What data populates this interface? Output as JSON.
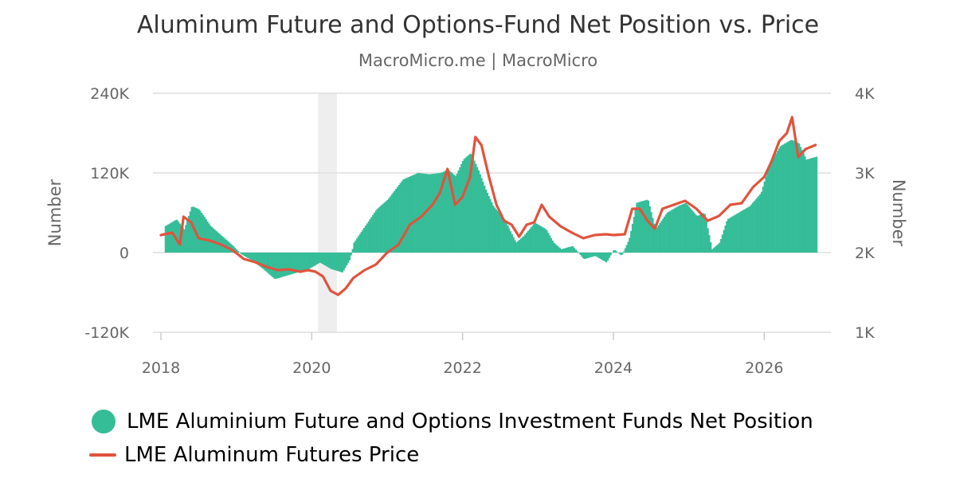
{
  "header": {
    "title": "Aluminum Future and Options-Fund Net Position vs. Price",
    "subtitle": "MacroMicro.me | MacroMicro"
  },
  "colors": {
    "position": "#35bd98",
    "price": "#e0533d",
    "recession": "#eeeeee",
    "grid": "#dddddd",
    "axis_text": "#666666"
  },
  "chart_data": {
    "type": "bar+line",
    "title": "Aluminum Future and Options-Fund Net Position vs. Price",
    "subtitle": "MacroMicro.me | MacroMicro",
    "x_ticks": [
      "2018",
      "2020",
      "2022",
      "2024",
      "2026"
    ],
    "y_left": {
      "label": "Number",
      "min": -120000,
      "max": 240000,
      "ticks": [
        "-120K",
        "0",
        "120K",
        "240K"
      ]
    },
    "y_right": {
      "label": "Number",
      "min": 1000,
      "max": 4000,
      "ticks": [
        "1K",
        "2K",
        "3K",
        "4K"
      ]
    },
    "shaded_period": [
      "2020-02",
      "2020-05"
    ],
    "series": [
      {
        "name": "LME Aluminium Future and Options Investment Funds Net Position",
        "kind": "bar",
        "axis": "left",
        "points": [
          [
            2018.05,
            40000
          ],
          [
            2018.2,
            50000
          ],
          [
            2018.3,
            35000
          ],
          [
            2018.4,
            70000
          ],
          [
            2018.5,
            65000
          ],
          [
            2018.65,
            40000
          ],
          [
            2018.8,
            25000
          ],
          [
            2018.95,
            10000
          ],
          [
            2019.05,
            -2000
          ],
          [
            2019.2,
            -12000
          ],
          [
            2019.35,
            -25000
          ],
          [
            2019.5,
            -40000
          ],
          [
            2019.65,
            -35000
          ],
          [
            2019.8,
            -30000
          ],
          [
            2019.95,
            -25000
          ],
          [
            2020.1,
            -15000
          ],
          [
            2020.25,
            -25000
          ],
          [
            2020.4,
            -30000
          ],
          [
            2020.5,
            -10000
          ],
          [
            2020.55,
            15000
          ],
          [
            2020.7,
            40000
          ],
          [
            2020.85,
            65000
          ],
          [
            2021.0,
            80000
          ],
          [
            2021.2,
            110000
          ],
          [
            2021.4,
            120000
          ],
          [
            2021.55,
            118000
          ],
          [
            2021.7,
            120000
          ],
          [
            2021.8,
            125000
          ],
          [
            2021.9,
            115000
          ],
          [
            2022.0,
            140000
          ],
          [
            2022.1,
            150000
          ],
          [
            2022.2,
            125000
          ],
          [
            2022.3,
            95000
          ],
          [
            2022.4,
            70000
          ],
          [
            2022.55,
            50000
          ],
          [
            2022.7,
            15000
          ],
          [
            2022.8,
            25000
          ],
          [
            2022.95,
            45000
          ],
          [
            2023.1,
            35000
          ],
          [
            2023.2,
            15000
          ],
          [
            2023.3,
            5000
          ],
          [
            2023.45,
            10000
          ],
          [
            2023.6,
            -10000
          ],
          [
            2023.75,
            -5000
          ],
          [
            2023.9,
            -15000
          ],
          [
            2024.0,
            5000
          ],
          [
            2024.1,
            -5000
          ],
          [
            2024.2,
            20000
          ],
          [
            2024.3,
            75000
          ],
          [
            2024.45,
            80000
          ],
          [
            2024.55,
            35000
          ],
          [
            2024.7,
            60000
          ],
          [
            2024.85,
            70000
          ],
          [
            2024.95,
            75000
          ],
          [
            2025.1,
            55000
          ],
          [
            2025.2,
            60000
          ],
          [
            2025.3,
            5000
          ],
          [
            2025.4,
            15000
          ],
          [
            2025.5,
            50000
          ],
          [
            2025.65,
            60000
          ],
          [
            2025.8,
            70000
          ],
          [
            2025.95,
            90000
          ],
          [
            2026.05,
            130000
          ],
          [
            2026.2,
            160000
          ],
          [
            2026.35,
            170000
          ],
          [
            2026.45,
            165000
          ],
          [
            2026.55,
            140000
          ],
          [
            2026.7,
            145000
          ]
        ]
      },
      {
        "name": "LME Aluminum Futures Price",
        "kind": "line",
        "axis": "right",
        "points": [
          [
            2018.0,
            2220
          ],
          [
            2018.15,
            2250
          ],
          [
            2018.25,
            2100
          ],
          [
            2018.3,
            2450
          ],
          [
            2018.4,
            2380
          ],
          [
            2018.5,
            2180
          ],
          [
            2018.65,
            2150
          ],
          [
            2018.8,
            2100
          ],
          [
            2018.95,
            2030
          ],
          [
            2019.1,
            1920
          ],
          [
            2019.25,
            1880
          ],
          [
            2019.4,
            1820
          ],
          [
            2019.55,
            1780
          ],
          [
            2019.7,
            1790
          ],
          [
            2019.85,
            1760
          ],
          [
            2019.95,
            1780
          ],
          [
            2020.05,
            1760
          ],
          [
            2020.15,
            1700
          ],
          [
            2020.25,
            1520
          ],
          [
            2020.35,
            1470
          ],
          [
            2020.45,
            1550
          ],
          [
            2020.55,
            1680
          ],
          [
            2020.7,
            1780
          ],
          [
            2020.85,
            1850
          ],
          [
            2021.0,
            2000
          ],
          [
            2021.15,
            2100
          ],
          [
            2021.3,
            2350
          ],
          [
            2021.45,
            2450
          ],
          [
            2021.6,
            2600
          ],
          [
            2021.7,
            2750
          ],
          [
            2021.8,
            3050
          ],
          [
            2021.9,
            2600
          ],
          [
            2022.0,
            2700
          ],
          [
            2022.1,
            2950
          ],
          [
            2022.17,
            3450
          ],
          [
            2022.25,
            3350
          ],
          [
            2022.35,
            2950
          ],
          [
            2022.45,
            2600
          ],
          [
            2022.55,
            2400
          ],
          [
            2022.65,
            2350
          ],
          [
            2022.75,
            2200
          ],
          [
            2022.85,
            2350
          ],
          [
            2022.95,
            2380
          ],
          [
            2023.05,
            2600
          ],
          [
            2023.15,
            2450
          ],
          [
            2023.3,
            2330
          ],
          [
            2023.45,
            2250
          ],
          [
            2023.6,
            2180
          ],
          [
            2023.75,
            2220
          ],
          [
            2023.9,
            2230
          ],
          [
            2024.0,
            2220
          ],
          [
            2024.15,
            2230
          ],
          [
            2024.25,
            2550
          ],
          [
            2024.35,
            2550
          ],
          [
            2024.45,
            2400
          ],
          [
            2024.55,
            2300
          ],
          [
            2024.65,
            2550
          ],
          [
            2024.8,
            2600
          ],
          [
            2024.95,
            2650
          ],
          [
            2025.1,
            2550
          ],
          [
            2025.25,
            2400
          ],
          [
            2025.4,
            2460
          ],
          [
            2025.55,
            2600
          ],
          [
            2025.7,
            2620
          ],
          [
            2025.85,
            2820
          ],
          [
            2026.0,
            2950
          ],
          [
            2026.1,
            3150
          ],
          [
            2026.2,
            3400
          ],
          [
            2026.3,
            3500
          ],
          [
            2026.37,
            3700
          ],
          [
            2026.45,
            3200
          ],
          [
            2026.55,
            3300
          ],
          [
            2026.68,
            3350
          ]
        ]
      }
    ],
    "legend_position": "bottom-left",
    "grid": true
  },
  "legend": {
    "items": [
      {
        "label": "LME Aluminium Future and Options Investment Funds Net Position"
      },
      {
        "label": "LME Aluminum Futures Price"
      }
    ]
  }
}
